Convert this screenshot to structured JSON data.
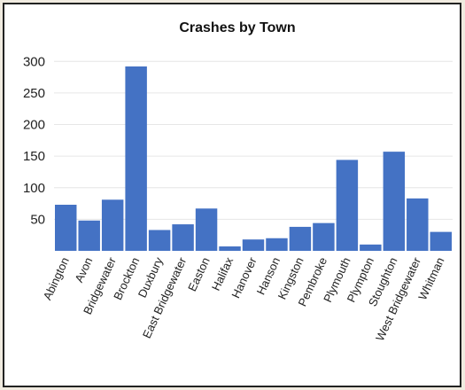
{
  "chart_data": {
    "type": "bar",
    "title": "Crashes by Town",
    "xlabel": "",
    "ylabel": "",
    "categories": [
      "Abington",
      "Avon",
      "Bridgewater",
      "Brockton",
      "Duxbury",
      "East Bridgewater",
      "Easton",
      "Halifax",
      "Hanover",
      "Hanson",
      "Kingston",
      "Pembroke",
      "Plymouth",
      "Plympton",
      "Stoughton",
      "West Bridgewater",
      "Whitman"
    ],
    "values": [
      73,
      48,
      81,
      292,
      33,
      42,
      67,
      7,
      18,
      20,
      38,
      44,
      144,
      10,
      157,
      83,
      30
    ],
    "ylim": [
      0,
      320
    ],
    "yticks": [
      50,
      100,
      150,
      200,
      250,
      300
    ],
    "grid": true,
    "legend": "none",
    "bar_color": "#4472c4",
    "grid_color": "#e6e6e6"
  }
}
